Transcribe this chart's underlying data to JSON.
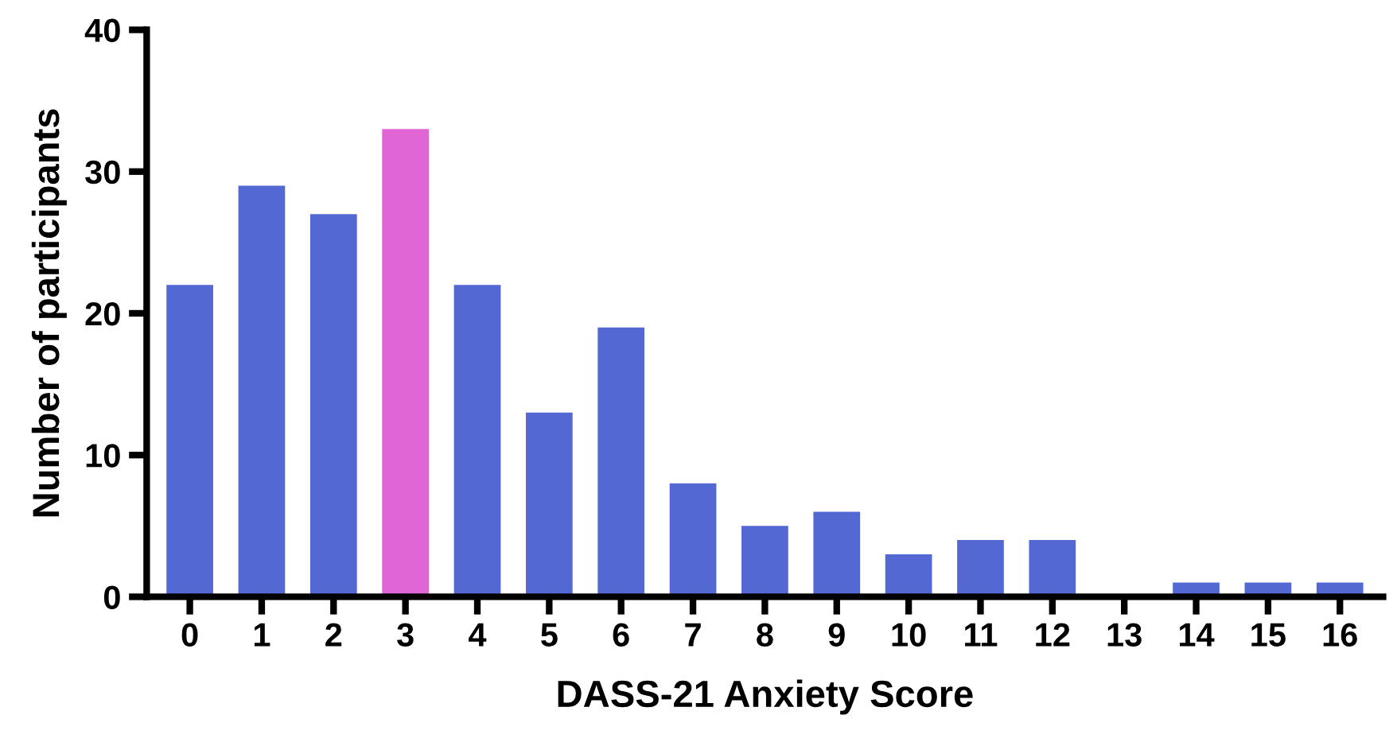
{
  "chart_data": {
    "type": "bar",
    "xlabel": "DASS-21 Anxiety Score",
    "ylabel": "Number of participants",
    "categories": [
      "0",
      "1",
      "2",
      "3",
      "4",
      "5",
      "6",
      "7",
      "8",
      "9",
      "10",
      "11",
      "12",
      "13",
      "14",
      "15",
      "16"
    ],
    "values": [
      22,
      29,
      27,
      33,
      22,
      13,
      19,
      8,
      5,
      6,
      3,
      4,
      4,
      0,
      1,
      1,
      1
    ],
    "colors": [
      "#5468d4",
      "#5468d4",
      "#5468d4",
      "#e066d6",
      "#5468d4",
      "#5468d4",
      "#5468d4",
      "#5468d4",
      "#5468d4",
      "#5468d4",
      "#5468d4",
      "#5468d4",
      "#5468d4",
      "#5468d4",
      "#5468d4",
      "#5468d4",
      "#5468d4"
    ],
    "ylim": [
      0,
      40
    ],
    "yticks": [
      0,
      10,
      20,
      30,
      40
    ],
    "grid": false,
    "legend": false
  }
}
